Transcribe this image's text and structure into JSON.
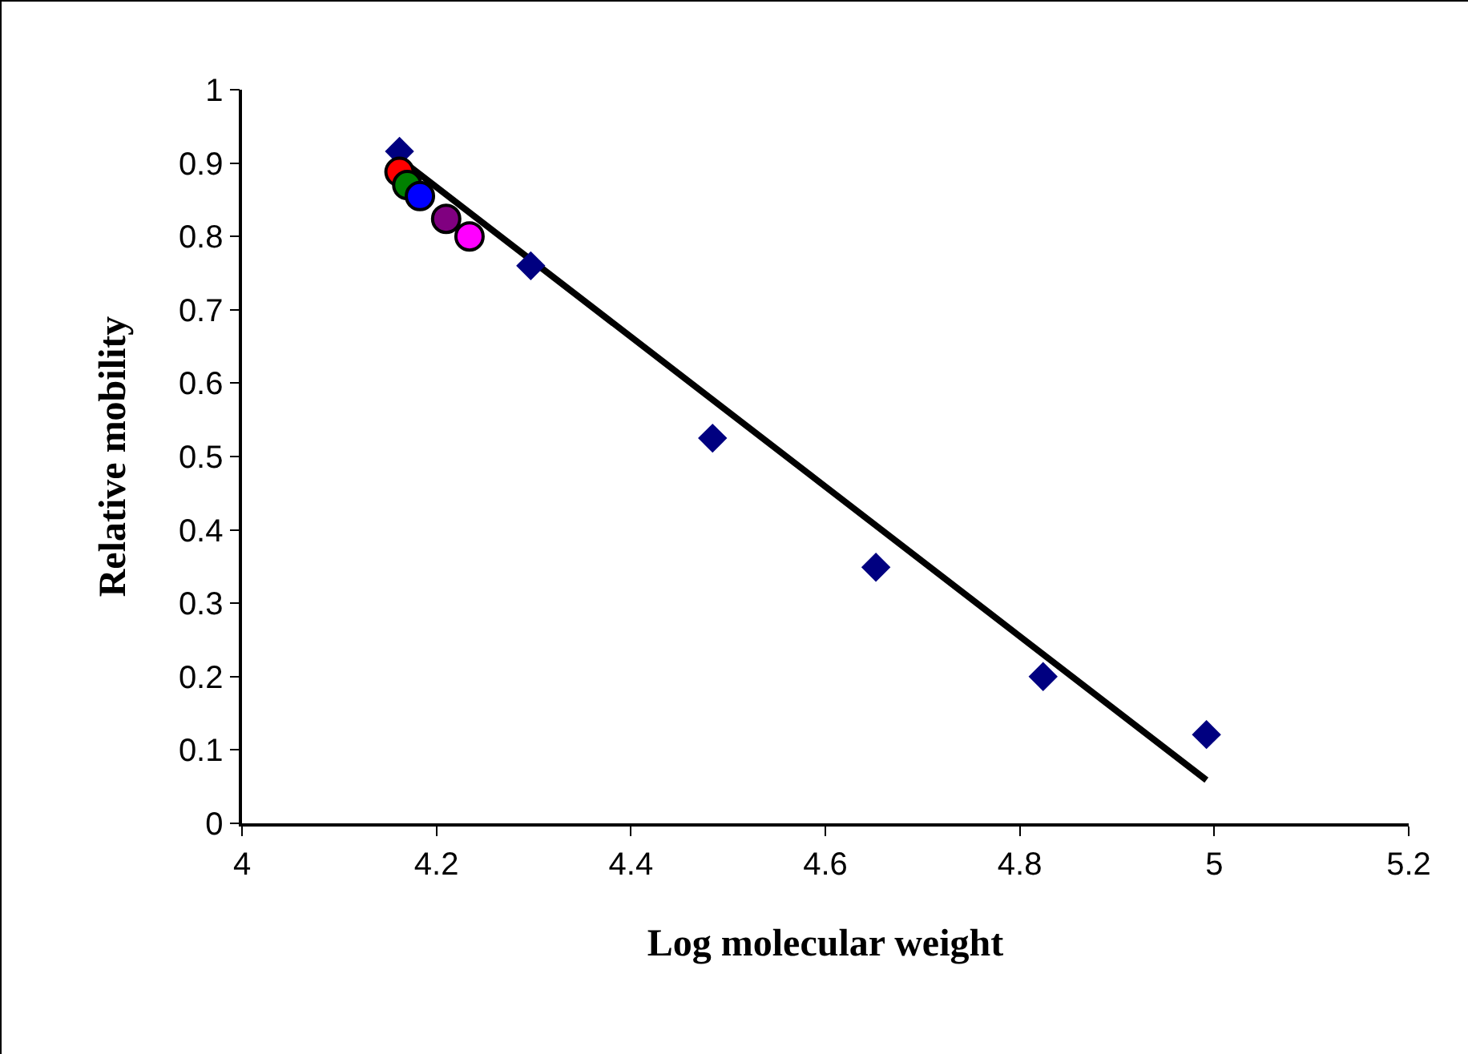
{
  "chart_data": {
    "type": "scatter",
    "xlabel": "Log molecular weight",
    "ylabel": "Relative mobility",
    "xlim": [
      4,
      5.2
    ],
    "xticks": [
      4,
      4.2,
      4.4,
      4.6,
      4.8,
      5,
      5.2
    ],
    "ylim": [
      0,
      1
    ],
    "yticks": [
      0,
      0.1,
      0.2,
      0.3,
      0.4,
      0.5,
      0.6,
      0.7,
      0.8,
      0.9,
      1
    ],
    "grid": false,
    "series": [
      {
        "type": "line",
        "color": "#000000",
        "marker": "none",
        "line_style": "solid",
        "x": [
          4.162,
          4.992
        ],
        "values": [
          0.906,
          0.059
        ]
      },
      {
        "color": "#000080",
        "marker": "diamond",
        "x": [
          4.162,
          4.297,
          4.484,
          4.652,
          4.824,
          4.992
        ],
        "values": [
          0.916,
          0.76,
          0.525,
          0.349,
          0.2,
          0.121
        ]
      },
      {
        "color": "#ff0000",
        "marker": "circle",
        "x": [
          4.162
        ],
        "values": [
          0.888
        ]
      },
      {
        "color": "#008000",
        "marker": "circle",
        "x": [
          4.17
        ],
        "values": [
          0.87
        ]
      },
      {
        "color": "#0000ff",
        "marker": "circle",
        "x": [
          4.183
        ],
        "values": [
          0.855
        ]
      },
      {
        "color": "#800080",
        "marker": "circle",
        "x": [
          4.21
        ],
        "values": [
          0.824
        ]
      },
      {
        "color": "#ff00ff",
        "marker": "circle",
        "x": [
          4.234
        ],
        "values": [
          0.8
        ]
      }
    ]
  }
}
